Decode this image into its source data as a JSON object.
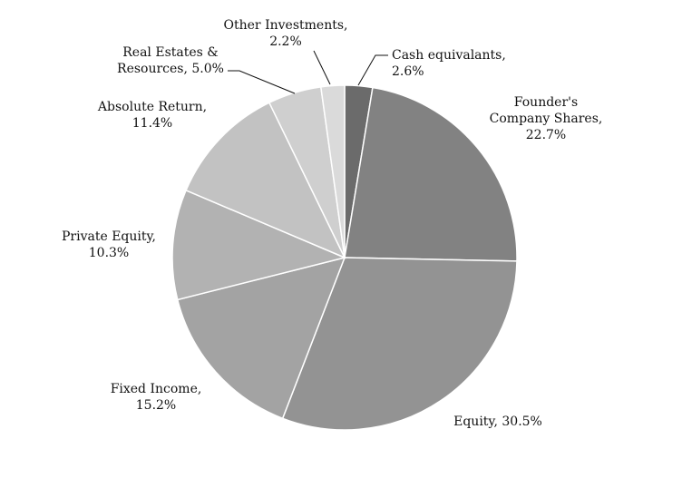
{
  "chart_data": {
    "type": "pie",
    "title": "",
    "slices": [
      {
        "lines": [
          "Cash equivalants,",
          "2.6%"
        ],
        "value": 2.6,
        "color": "#6b6b6b"
      },
      {
        "lines": [
          "Founder's",
          "Company Shares,",
          "22.7%"
        ],
        "value": 22.7,
        "color": "#828282"
      },
      {
        "lines": [
          "Equity, 30.5%"
        ],
        "value": 30.5,
        "color": "#939393"
      },
      {
        "lines": [
          "Fixed Income,",
          "15.2%"
        ],
        "value": 15.2,
        "color": "#a3a3a3"
      },
      {
        "lines": [
          "Private Equity,",
          "10.3%"
        ],
        "value": 10.3,
        "color": "#b2b2b2"
      },
      {
        "lines": [
          "Absolute Return,",
          "11.4%"
        ],
        "value": 11.4,
        "color": "#c2c2c2"
      },
      {
        "lines": [
          "Real Estates &",
          "Resources, 5.0%"
        ],
        "value": 5.0,
        "color": "#cfcfcf"
      },
      {
        "lines": [
          "Other Investments,",
          "2.2%"
        ],
        "value": 2.2,
        "color": "#dadada"
      }
    ]
  }
}
